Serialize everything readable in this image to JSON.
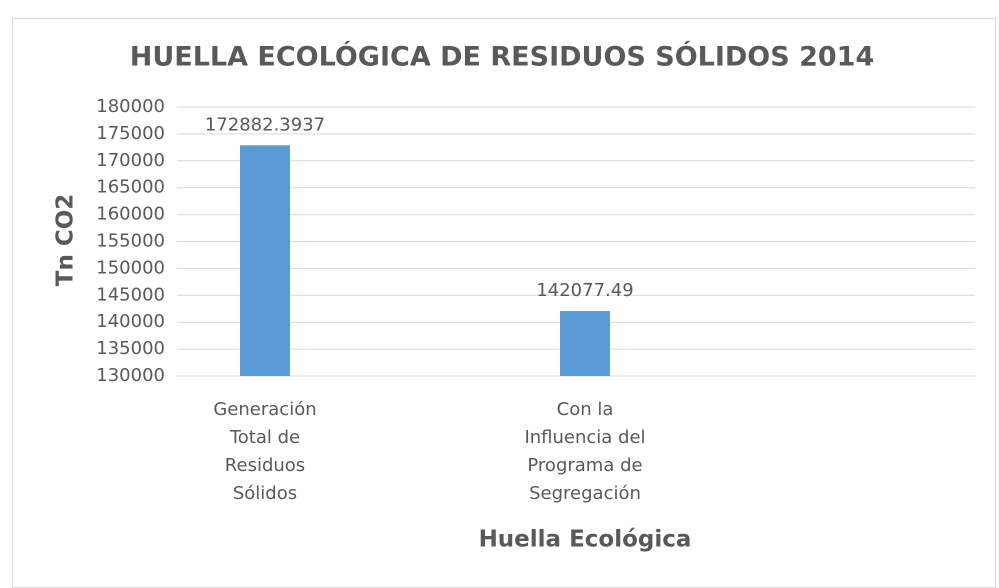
{
  "chart_data": {
    "type": "bar",
    "title": "HUELLA ECOLÓGICA DE RESIDUOS SÓLIDOS 2014",
    "x_label": "Huella Ecológica",
    "y_label": "Tn CO2",
    "categories": [
      "Generación Total de Residuos Sólidos",
      "Con la Influencia del Programa de Segregación"
    ],
    "values": [
      172882.3937,
      142077.49
    ],
    "color": "#5b9bd5",
    "ylim": [
      130000,
      180000
    ],
    "yticks": [
      130000,
      135000,
      140000,
      145000,
      150000,
      155000,
      160000,
      165000,
      170000,
      175000,
      180000
    ],
    "grid": true
  }
}
